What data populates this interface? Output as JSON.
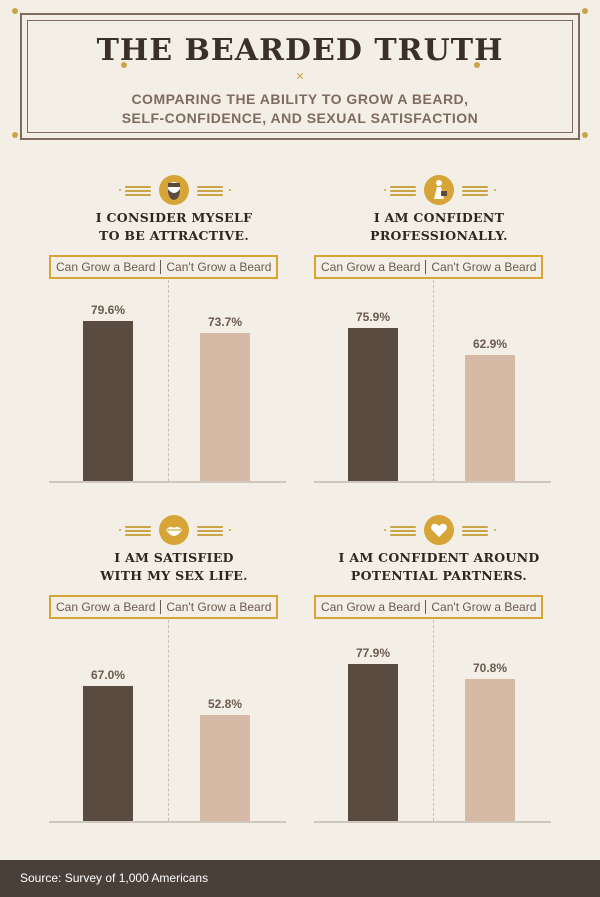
{
  "header": {
    "title": "THE BEARDED TRUTH",
    "subtitle_line1": "COMPARING THE ABILITY TO GROW A BEARD,",
    "subtitle_line2": "SELF-CONFIDENCE, AND SEXUAL SATISFACTION"
  },
  "colors": {
    "can_grow": "#5a4b40",
    "cant_grow": "#d7baa5",
    "accent": "#d6a437"
  },
  "legend": {
    "can": "Can Grow a Beard",
    "cant": "Can't Grow a Beard"
  },
  "chart_data": [
    {
      "type": "bar",
      "icon": "face-beard-icon",
      "title_line1": "I CONSIDER MYSELF",
      "title_line2": "TO BE ATTRACTIVE.",
      "categories": [
        "Can Grow a Beard",
        "Can't Grow a Beard"
      ],
      "values": [
        79.6,
        73.7
      ],
      "labels": [
        "79.6%",
        "73.7%"
      ],
      "ylim": [
        0,
        100
      ]
    },
    {
      "type": "bar",
      "icon": "briefcase-person-icon",
      "title_line1": "I AM CONFIDENT",
      "title_line2": "PROFESSIONALLY.",
      "categories": [
        "Can Grow a Beard",
        "Can't Grow a Beard"
      ],
      "values": [
        75.9,
        62.9
      ],
      "labels": [
        "75.9%",
        "62.9%"
      ],
      "ylim": [
        0,
        100
      ]
    },
    {
      "type": "bar",
      "icon": "lips-icon",
      "title_line1": "I AM SATISFIED",
      "title_line2": "WITH MY SEX LIFE.",
      "categories": [
        "Can Grow a Beard",
        "Can't Grow a Beard"
      ],
      "values": [
        67.0,
        52.8
      ],
      "labels": [
        "67.0%",
        "52.8%"
      ],
      "ylim": [
        0,
        100
      ]
    },
    {
      "type": "bar",
      "icon": "heart-icon",
      "title_line1": "I AM CONFIDENT AROUND",
      "title_line2": "POTENTIAL PARTNERS.",
      "categories": [
        "Can Grow a Beard",
        "Can't Grow a Beard"
      ],
      "values": [
        77.9,
        70.8
      ],
      "labels": [
        "77.9%",
        "70.8%"
      ],
      "ylim": [
        0,
        100
      ]
    }
  ],
  "footer": {
    "source": "Source: Survey of 1,000 Americans"
  }
}
